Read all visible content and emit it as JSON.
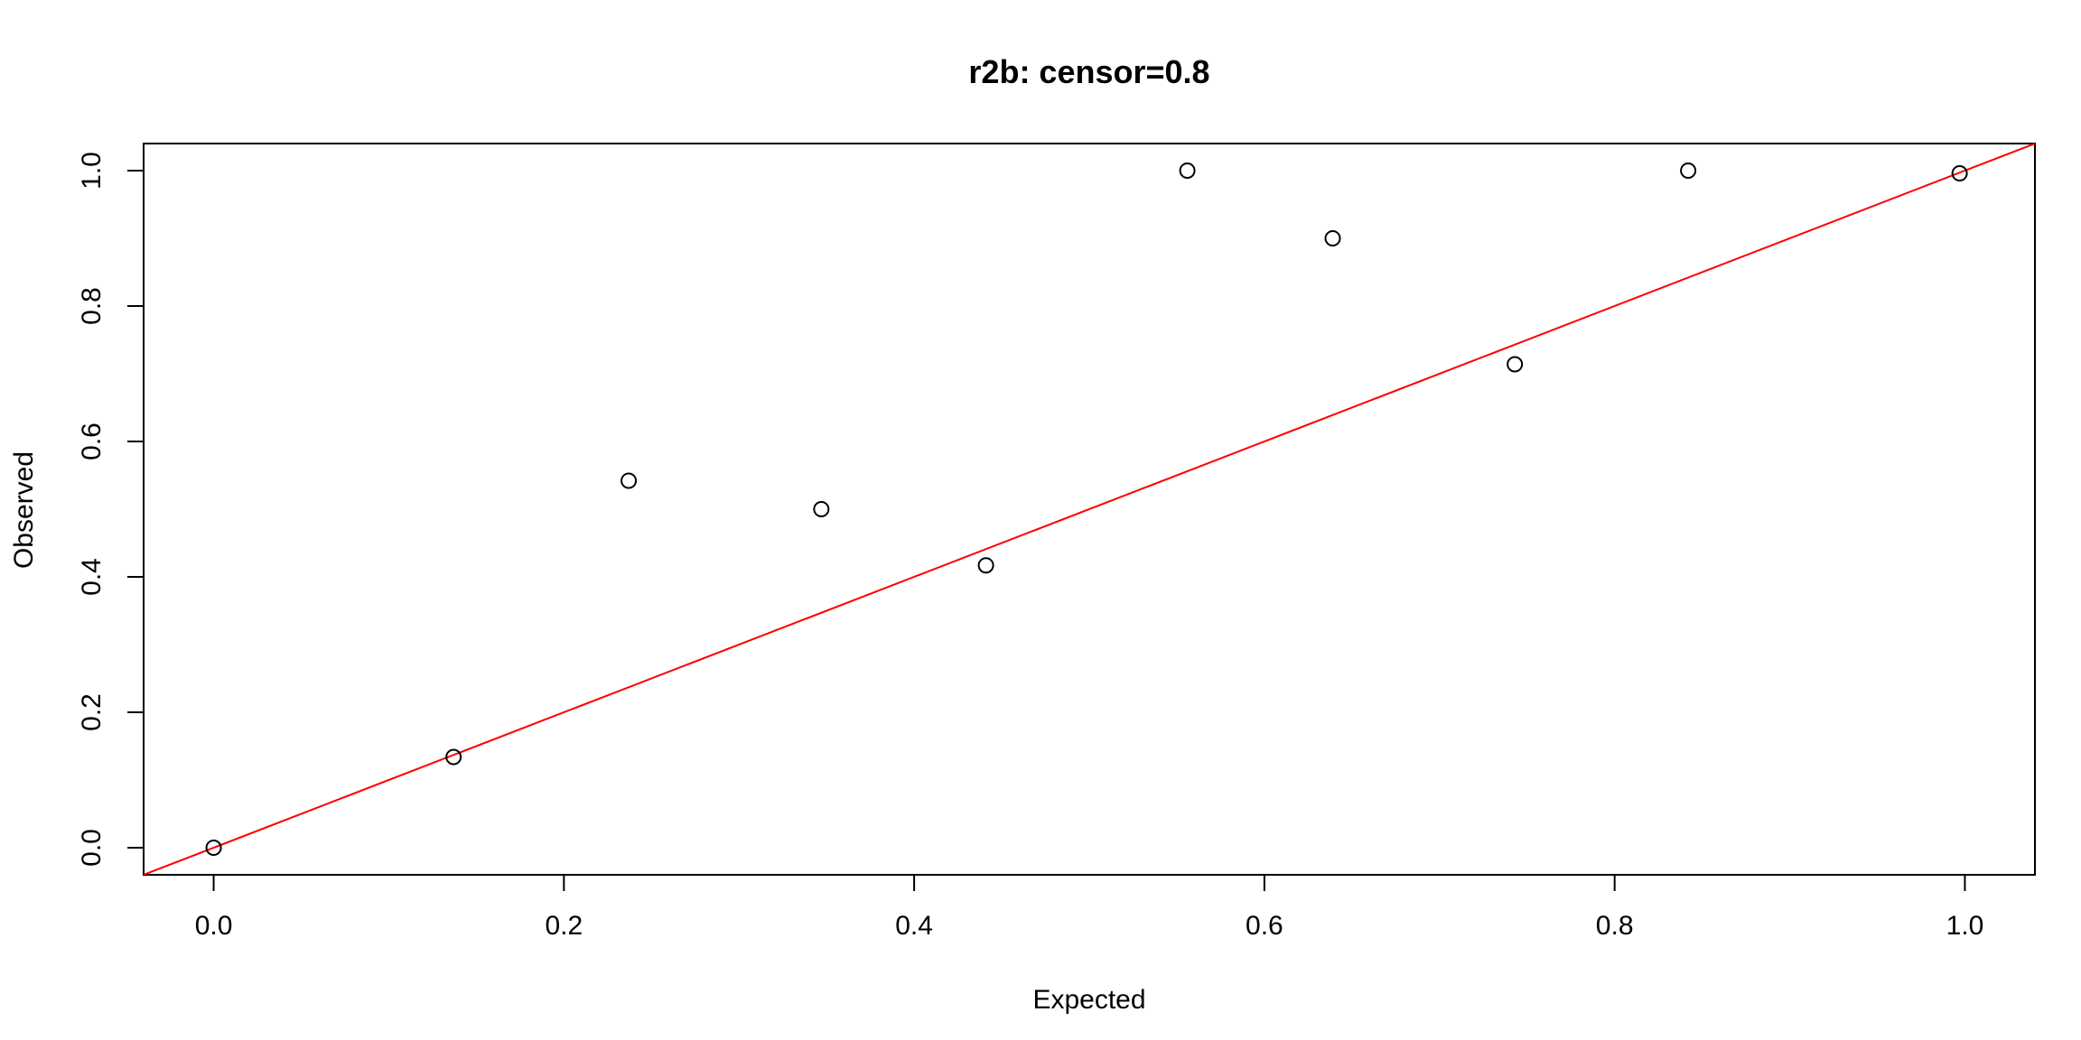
{
  "chart_data": {
    "type": "scatter",
    "title": "r2b: censor=0.8",
    "xlabel": "Expected",
    "ylabel": "Observed",
    "xlim": [
      -0.04,
      1.04
    ],
    "ylim": [
      -0.04,
      1.04
    ],
    "x_ticks": [
      {
        "value": 0.0,
        "label": "0.0"
      },
      {
        "value": 0.2,
        "label": "0.2"
      },
      {
        "value": 0.4,
        "label": "0.4"
      },
      {
        "value": 0.6,
        "label": "0.6"
      },
      {
        "value": 0.8,
        "label": "0.8"
      },
      {
        "value": 1.0,
        "label": "1.0"
      }
    ],
    "y_ticks": [
      {
        "value": 0.0,
        "label": "0.0"
      },
      {
        "value": 0.2,
        "label": "0.2"
      },
      {
        "value": 0.4,
        "label": "0.4"
      },
      {
        "value": 0.6,
        "label": "0.6"
      },
      {
        "value": 0.8,
        "label": "0.8"
      },
      {
        "value": 1.0,
        "label": "1.0"
      }
    ],
    "points": [
      {
        "x": 0.0,
        "y": 0.0
      },
      {
        "x": 0.137,
        "y": 0.134
      },
      {
        "x": 0.237,
        "y": 0.542
      },
      {
        "x": 0.347,
        "y": 0.5
      },
      {
        "x": 0.441,
        "y": 0.417
      },
      {
        "x": 0.556,
        "y": 1.0
      },
      {
        "x": 0.639,
        "y": 0.9
      },
      {
        "x": 0.743,
        "y": 0.714
      },
      {
        "x": 0.842,
        "y": 1.0
      },
      {
        "x": 0.997,
        "y": 0.996
      }
    ],
    "reference_line": {
      "intercept": 0,
      "slope": 1,
      "color": "#ff0000"
    },
    "point_color": "#000000",
    "grid": false,
    "legend": "none"
  }
}
